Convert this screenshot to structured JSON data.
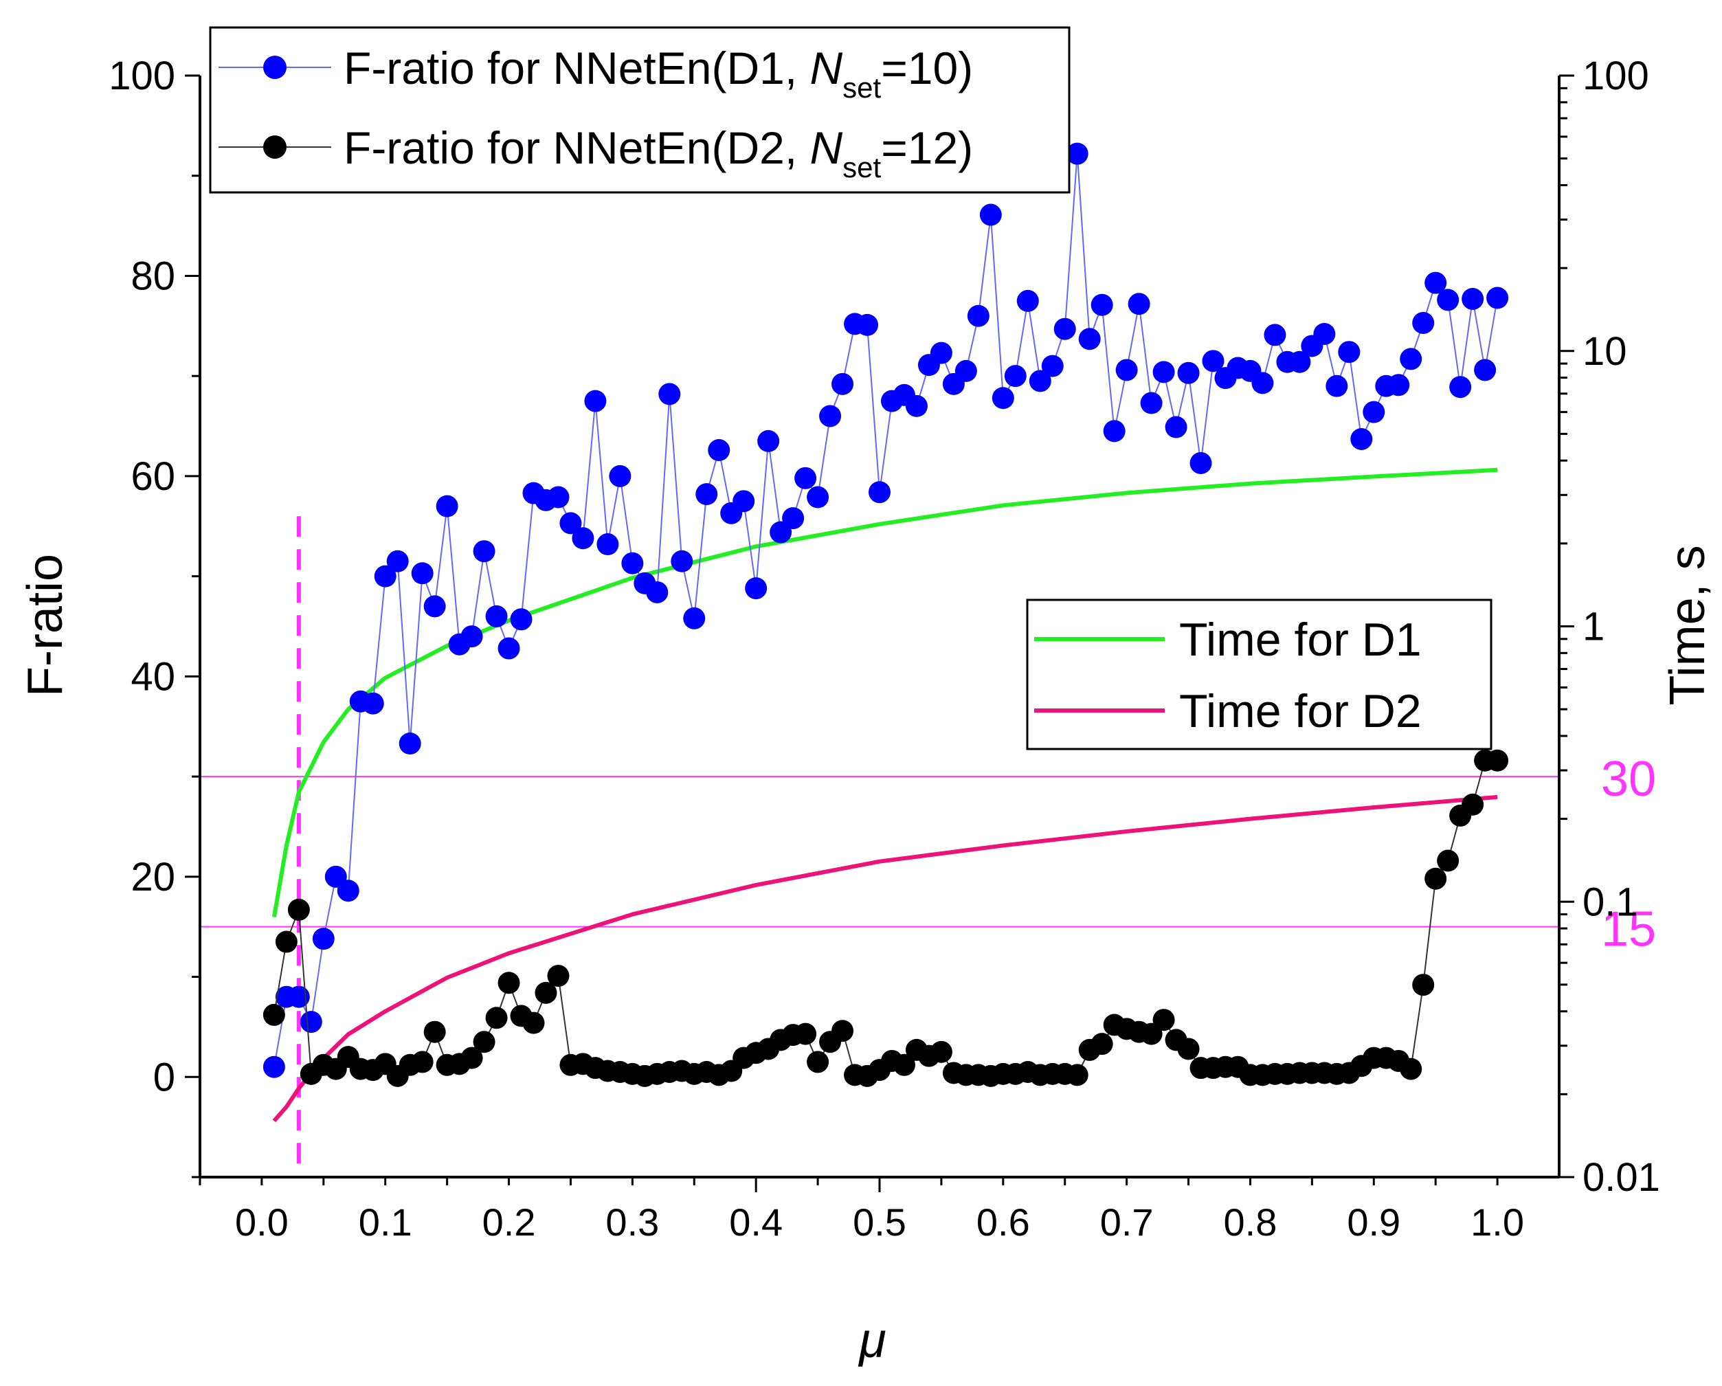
{
  "chart_data": {
    "type": "scatter",
    "x_label": "μ",
    "y_label_left": "F-ratio",
    "y_label_right": "Time, s",
    "x_range": [
      -0.05,
      1.05
    ],
    "x_ticks": [
      "0.0",
      "0.1",
      "0.2",
      "0.3",
      "0.4",
      "0.5",
      "0.6",
      "0.7",
      "0.8",
      "0.9",
      "1.0"
    ],
    "x_tick_values": [
      0.0,
      0.1,
      0.2,
      0.3,
      0.4,
      0.5,
      0.6,
      0.7,
      0.8,
      0.9,
      1.0
    ],
    "y_left_range": [
      -10,
      100
    ],
    "y_left_ticks": [
      "0",
      "20",
      "40",
      "60",
      "80",
      "100"
    ],
    "y_left_tick_values": [
      0,
      20,
      40,
      60,
      80,
      100
    ],
    "y_right_range_log": [
      0.01,
      100
    ],
    "y_right_ticks": [
      "0.01",
      "0.1",
      "1",
      "10",
      "100"
    ],
    "y_right_tick_values": [
      0.01,
      0.1,
      1,
      10,
      100
    ],
    "reference_lines": [
      {
        "label": "30",
        "y": 30,
        "color": "#ff33ff"
      },
      {
        "label": "15",
        "y": 15,
        "color": "#ff33ff"
      }
    ],
    "vertical_line": {
      "x": 0.03,
      "color": "#ff33ff"
    },
    "legend_top": [
      {
        "text": "F-ratio for NNetEn(D1, ",
        "italic": "N",
        "sub": "set",
        "tail": "=10)",
        "color": "#0000ff"
      },
      {
        "text": "F-ratio for NNetEn(D2, ",
        "italic": "N",
        "sub": "set",
        "tail": "=12)",
        "color": "#000000"
      }
    ],
    "legend_bottom": [
      {
        "text": "Time for D1",
        "color": "#22ee22"
      },
      {
        "text": "Time for D2",
        "color": "#ee1177"
      }
    ],
    "series": [
      {
        "name": "F-ratio for NNetEn(D1, Nset=10)",
        "axis": "left",
        "color": "#0000ff",
        "line_color": "#6666ff",
        "x": [
          0.01,
          0.02,
          0.03,
          0.04,
          0.05,
          0.06,
          0.07,
          0.08,
          0.09,
          0.1,
          0.11,
          0.12,
          0.13,
          0.14,
          0.15,
          0.16,
          0.17,
          0.18,
          0.19,
          0.2,
          0.21,
          0.22,
          0.23,
          0.24,
          0.25,
          0.26,
          0.27,
          0.28,
          0.29,
          0.3,
          0.31,
          0.32,
          0.33,
          0.34,
          0.35,
          0.36,
          0.37,
          0.38,
          0.39,
          0.4,
          0.41,
          0.42,
          0.43,
          0.44,
          0.45,
          0.46,
          0.47,
          0.48,
          0.49,
          0.5,
          0.51,
          0.52,
          0.53,
          0.54,
          0.55,
          0.56,
          0.57,
          0.58,
          0.59,
          0.6,
          0.61,
          0.62,
          0.63,
          0.64,
          0.65,
          0.66,
          0.67,
          0.68,
          0.69,
          0.7,
          0.71,
          0.72,
          0.73,
          0.74,
          0.75,
          0.76,
          0.77,
          0.78,
          0.79,
          0.8,
          0.81,
          0.82,
          0.83,
          0.84,
          0.85,
          0.86,
          0.87,
          0.88,
          0.89,
          0.9,
          0.91,
          0.92,
          0.93,
          0.94,
          0.95,
          0.96,
          0.97,
          0.98,
          0.99,
          1.0
        ],
        "y": [
          1,
          8,
          8,
          5.5,
          13.8,
          20,
          18.6,
          37.5,
          37.3,
          50,
          51.5,
          33.3,
          50.3,
          47,
          57,
          43.2,
          44,
          52.5,
          46,
          42.8,
          45.7,
          58.3,
          57.6,
          57.9,
          55.3,
          53.8,
          67.5,
          53.2,
          60,
          51.3,
          49.3,
          48.4,
          68.2,
          51.5,
          45.8,
          58.2,
          62.6,
          56.3,
          57.5,
          48.8,
          63.5,
          54.4,
          55.8,
          59.8,
          57.9,
          66,
          69.2,
          75.2,
          75.1,
          58.4,
          67.5,
          68.1,
          67,
          71.1,
          72.3,
          69.2,
          70.5,
          76,
          86.1,
          67.8,
          70,
          77.5,
          69.5,
          71,
          74.7,
          92.2,
          73.7,
          77.1,
          64.5,
          70.6,
          77.2,
          67.3,
          70.4,
          64.9,
          70.3,
          61.3,
          71.5,
          69.8,
          70.8,
          70.5,
          69.3,
          74.1,
          71.4,
          71.4,
          73,
          74.2,
          69,
          72.4,
          63.7,
          66.4,
          69,
          69.1,
          71.7,
          75.3,
          79.3,
          77.6,
          68.9,
          77.7,
          70.6,
          77.8
        ]
      },
      {
        "name": "F-ratio for NNetEn(D2, Nset=12)",
        "axis": "left",
        "color": "#000000",
        "line_color": "#333333",
        "x": [
          0.01,
          0.02,
          0.03,
          0.04,
          0.05,
          0.06,
          0.07,
          0.08,
          0.09,
          0.1,
          0.11,
          0.12,
          0.13,
          0.14,
          0.15,
          0.16,
          0.17,
          0.18,
          0.19,
          0.2,
          0.21,
          0.22,
          0.23,
          0.24,
          0.25,
          0.26,
          0.27,
          0.28,
          0.29,
          0.3,
          0.31,
          0.32,
          0.33,
          0.34,
          0.35,
          0.36,
          0.37,
          0.38,
          0.39,
          0.4,
          0.41,
          0.42,
          0.43,
          0.44,
          0.45,
          0.46,
          0.47,
          0.48,
          0.49,
          0.5,
          0.51,
          0.52,
          0.53,
          0.54,
          0.55,
          0.56,
          0.57,
          0.58,
          0.59,
          0.6,
          0.61,
          0.62,
          0.63,
          0.64,
          0.65,
          0.66,
          0.67,
          0.68,
          0.69,
          0.7,
          0.71,
          0.72,
          0.73,
          0.74,
          0.75,
          0.76,
          0.77,
          0.78,
          0.79,
          0.8,
          0.81,
          0.82,
          0.83,
          0.84,
          0.85,
          0.86,
          0.87,
          0.88,
          0.89,
          0.9,
          0.91,
          0.92,
          0.93,
          0.94,
          0.95,
          0.96,
          0.97,
          0.98,
          0.99,
          1.0
        ],
        "y": [
          6.2,
          13.5,
          16.7,
          0.3,
          1.2,
          0.8,
          2,
          0.8,
          0.7,
          1.3,
          0.1,
          1.2,
          1.5,
          4.5,
          1.2,
          1.3,
          1.9,
          3.5,
          5.9,
          9.4,
          6.1,
          5.4,
          8.4,
          10.1,
          1.2,
          1.3,
          0.9,
          0.6,
          0.5,
          0.3,
          0.1,
          0.3,
          0.5,
          0.6,
          0.3,
          0.5,
          0.2,
          0.6,
          1.9,
          2.4,
          2.8,
          3.7,
          4.2,
          4.3,
          1.5,
          3.5,
          4.6,
          0.2,
          0.1,
          0.7,
          1.6,
          1.2,
          2.7,
          2.1,
          2.5,
          0.4,
          0.2,
          0.2,
          0.1,
          0.3,
          0.3,
          0.5,
          0.2,
          0.3,
          0.3,
          0.2,
          2.7,
          3.3,
          5.2,
          4.8,
          4.5,
          4.3,
          5.7,
          3.7,
          2.8,
          0.9,
          0.9,
          1,
          1,
          0.2,
          0.2,
          0.3,
          0.3,
          0.4,
          0.4,
          0.4,
          0.3,
          0.4,
          1.1,
          1.9,
          1.9,
          1.6,
          0.8,
          9.2,
          19.8,
          21.6,
          26.1,
          27.2,
          31.6,
          31.6
        ]
      },
      {
        "name": "Time for D1",
        "axis": "right",
        "type": "line",
        "color": "#22ee22",
        "x": [
          0.01,
          0.02,
          0.03,
          0.05,
          0.07,
          0.1,
          0.15,
          0.2,
          0.3,
          0.4,
          0.5,
          0.6,
          0.7,
          0.8,
          0.9,
          1.0
        ],
        "y": [
          0.088,
          0.16,
          0.25,
          0.38,
          0.5,
          0.65,
          0.85,
          1.05,
          1.5,
          1.95,
          2.35,
          2.75,
          3.05,
          3.3,
          3.5,
          3.7
        ]
      },
      {
        "name": "Time for D2",
        "axis": "right",
        "type": "line",
        "color": "#ee1177",
        "x": [
          0.01,
          0.02,
          0.03,
          0.05,
          0.07,
          0.1,
          0.15,
          0.2,
          0.3,
          0.4,
          0.5,
          0.6,
          0.7,
          0.8,
          0.9,
          1.0
        ],
        "y": [
          0.016,
          0.018,
          0.021,
          0.027,
          0.033,
          0.04,
          0.053,
          0.065,
          0.09,
          0.115,
          0.14,
          0.16,
          0.18,
          0.2,
          0.22,
          0.24
        ]
      }
    ]
  }
}
